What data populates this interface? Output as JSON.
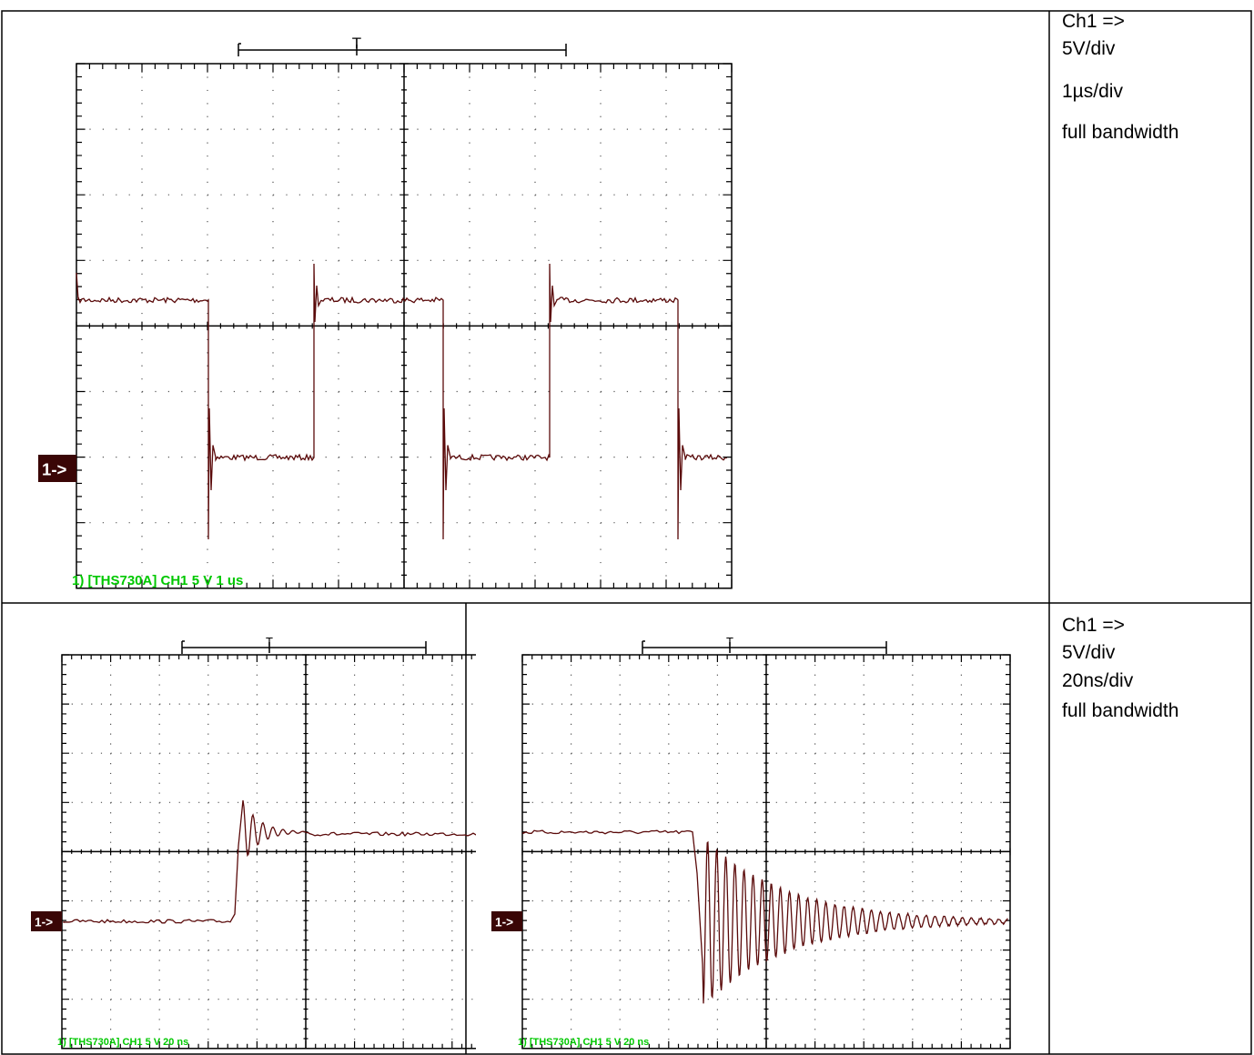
{
  "rows": [
    {
      "scopes": [
        {
          "channel_marker": "1->",
          "trigger_marker": "T",
          "status": "1) [THS730A] CH1 5 V 1 us"
        }
      ],
      "notes": [
        "Ch1 =>",
        "5V/div",
        "1µs/div",
        "full bandwidth"
      ]
    },
    {
      "scopes": [
        {
          "channel_marker": "1->",
          "trigger_marker": "T",
          "status": "1) [THS730A] CH1 5 V 20 ns"
        },
        {
          "channel_marker": "1->",
          "trigger_marker": "T",
          "status": "1) [THS730A] CH1 5 V 20 ns"
        }
      ],
      "notes": [
        "Ch1 =>",
        "5V/div",
        "20ns/div",
        "full bandwidth"
      ]
    }
  ]
}
